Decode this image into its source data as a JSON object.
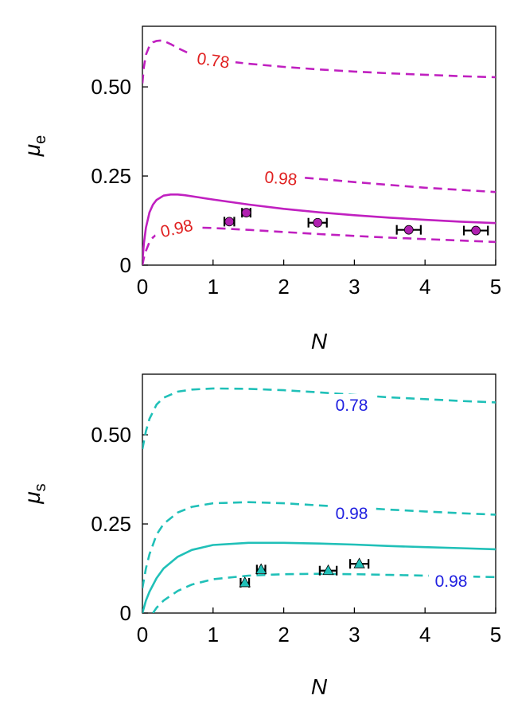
{
  "chart_data": [
    {
      "type": "line",
      "panel": "top",
      "xlabel": "N",
      "ylabel": "μ",
      "ylabel_sub": "e",
      "xlim": [
        0,
        5
      ],
      "ylim": [
        0,
        0.67
      ],
      "xticks": [
        0,
        1,
        2,
        3,
        4,
        5
      ],
      "xtick_labels": [
        "0",
        "1",
        "2",
        "3",
        "4",
        "5"
      ],
      "yticks": [
        0,
        0.25,
        0.5
      ],
      "ytick_labels": [
        "0",
        "0.25",
        "0.50"
      ],
      "grid": false,
      "legend": "none",
      "line_color": "#c020c0",
      "label_color": "#e02020",
      "series": [
        {
          "style": "dashed",
          "label": "0.78",
          "x": [
            0.0,
            0.02,
            0.05,
            0.1,
            0.15,
            0.2,
            0.25,
            0.3,
            0.4,
            0.5,
            0.7,
            1.0,
            1.5,
            2.0,
            2.5,
            3.0,
            3.5,
            4.0,
            4.5,
            5.0
          ],
          "y": [
            0.51,
            0.555,
            0.59,
            0.615,
            0.625,
            0.629,
            0.63,
            0.629,
            0.62,
            0.609,
            0.59,
            0.576,
            0.565,
            0.556,
            0.549,
            0.543,
            0.538,
            0.534,
            0.53,
            0.527
          ]
        },
        {
          "style": "dashed",
          "label": "0.98",
          "x": [
            2.3,
            2.6,
            3.0,
            3.5,
            4.0,
            4.5,
            5.0
          ],
          "y": [
            0.245,
            0.24,
            0.233,
            0.225,
            0.217,
            0.211,
            0.205
          ]
        },
        {
          "style": "solid",
          "label": "",
          "x": [
            0.0,
            0.02,
            0.05,
            0.1,
            0.15,
            0.2,
            0.3,
            0.4,
            0.5,
            0.6,
            0.8,
            1.0,
            1.5,
            2.0,
            2.5,
            3.0,
            3.5,
            4.0,
            4.5,
            5.0
          ],
          "y": [
            0.01,
            0.06,
            0.105,
            0.148,
            0.17,
            0.183,
            0.195,
            0.198,
            0.198,
            0.196,
            0.19,
            0.184,
            0.17,
            0.158,
            0.148,
            0.14,
            0.133,
            0.127,
            0.122,
            0.118
          ]
        },
        {
          "style": "dashed",
          "label": "0.98",
          "x": [
            0.0,
            0.02,
            0.05,
            0.1,
            0.15,
            0.2,
            0.25,
            0.3,
            0.35
          ],
          "y": [
            0.0,
            0.02,
            0.04,
            0.065,
            0.078,
            0.086,
            0.091,
            0.094,
            0.096
          ]
        },
        {
          "style": "dashed",
          "label": "",
          "x": [
            0.85,
            1.0,
            1.5,
            2.0,
            2.5,
            3.0,
            3.5,
            4.0,
            4.5,
            5.0
          ],
          "y": [
            0.105,
            0.104,
            0.099,
            0.093,
            0.087,
            0.082,
            0.077,
            0.073,
            0.069,
            0.065
          ]
        }
      ],
      "points": [
        {
          "x": 1.23,
          "y": 0.122,
          "xerr": 0.07
        },
        {
          "x": 1.47,
          "y": 0.147,
          "xerr": 0.06
        },
        {
          "x": 2.48,
          "y": 0.119,
          "xerr": 0.13
        },
        {
          "x": 3.77,
          "y": 0.099,
          "xerr": 0.17
        },
        {
          "x": 4.72,
          "y": 0.097,
          "xerr": 0.17
        }
      ],
      "point_color": "#b020b0",
      "point_marker": "circle"
    },
    {
      "type": "line",
      "panel": "bottom",
      "xlabel": "N",
      "ylabel": "μ",
      "ylabel_sub": "s",
      "xlim": [
        0,
        5
      ],
      "ylim": [
        0,
        0.67
      ],
      "xticks": [
        0,
        1,
        2,
        3,
        4,
        5
      ],
      "xtick_labels": [
        "0",
        "1",
        "2",
        "3",
        "4",
        "5"
      ],
      "yticks": [
        0,
        0.25,
        0.5
      ],
      "ytick_labels": [
        "0",
        "0.25",
        "0.50"
      ],
      "grid": false,
      "legend": "none",
      "line_color": "#20c0b8",
      "label_color": "#2020e0",
      "series": [
        {
          "style": "dashed",
          "label": "0.78",
          "x": [
            0.0,
            0.05,
            0.1,
            0.2,
            0.3,
            0.5,
            0.7,
            1.0,
            1.5,
            2.0,
            2.5,
            3.0,
            3.5,
            4.0,
            4.5,
            5.0
          ],
          "y": [
            0.46,
            0.51,
            0.545,
            0.585,
            0.604,
            0.621,
            0.627,
            0.63,
            0.629,
            0.625,
            0.619,
            0.612,
            0.605,
            0.6,
            0.595,
            0.591
          ]
        },
        {
          "style": "dashed",
          "label": "0.98",
          "x": [
            0.0,
            0.05,
            0.1,
            0.2,
            0.3,
            0.5,
            0.7,
            1.0,
            1.5,
            2.0,
            2.5,
            3.0,
            3.5,
            4.0,
            4.5,
            5.0
          ],
          "y": [
            0.07,
            0.125,
            0.165,
            0.22,
            0.25,
            0.282,
            0.298,
            0.308,
            0.311,
            0.308,
            0.302,
            0.296,
            0.29,
            0.285,
            0.28,
            0.276
          ]
        },
        {
          "style": "solid",
          "label": "",
          "x": [
            0.0,
            0.05,
            0.1,
            0.2,
            0.3,
            0.5,
            0.7,
            1.0,
            1.5,
            2.0,
            2.5,
            3.0,
            3.5,
            4.0,
            4.5,
            5.0
          ],
          "y": [
            0.0,
            0.035,
            0.06,
            0.098,
            0.125,
            0.158,
            0.177,
            0.191,
            0.197,
            0.197,
            0.195,
            0.192,
            0.188,
            0.185,
            0.182,
            0.179
          ]
        },
        {
          "style": "dashed",
          "label": "0.98",
          "x": [
            0.15,
            0.2,
            0.3,
            0.5,
            0.7,
            1.0,
            1.5,
            2.0,
            2.5,
            3.0,
            3.5,
            4.0,
            4.5,
            5.0
          ],
          "y": [
            0.0,
            0.015,
            0.035,
            0.062,
            0.08,
            0.095,
            0.105,
            0.109,
            0.11,
            0.109,
            0.107,
            0.105,
            0.103,
            0.101
          ]
        }
      ],
      "points": [
        {
          "x": 1.45,
          "y": 0.085,
          "xerr": 0.06
        },
        {
          "x": 1.68,
          "y": 0.122,
          "xerr": 0.06
        },
        {
          "x": 2.63,
          "y": 0.119,
          "xerr": 0.12
        },
        {
          "x": 3.07,
          "y": 0.138,
          "xerr": 0.13
        }
      ],
      "point_color": "#20c0b8",
      "point_marker": "triangle"
    }
  ]
}
